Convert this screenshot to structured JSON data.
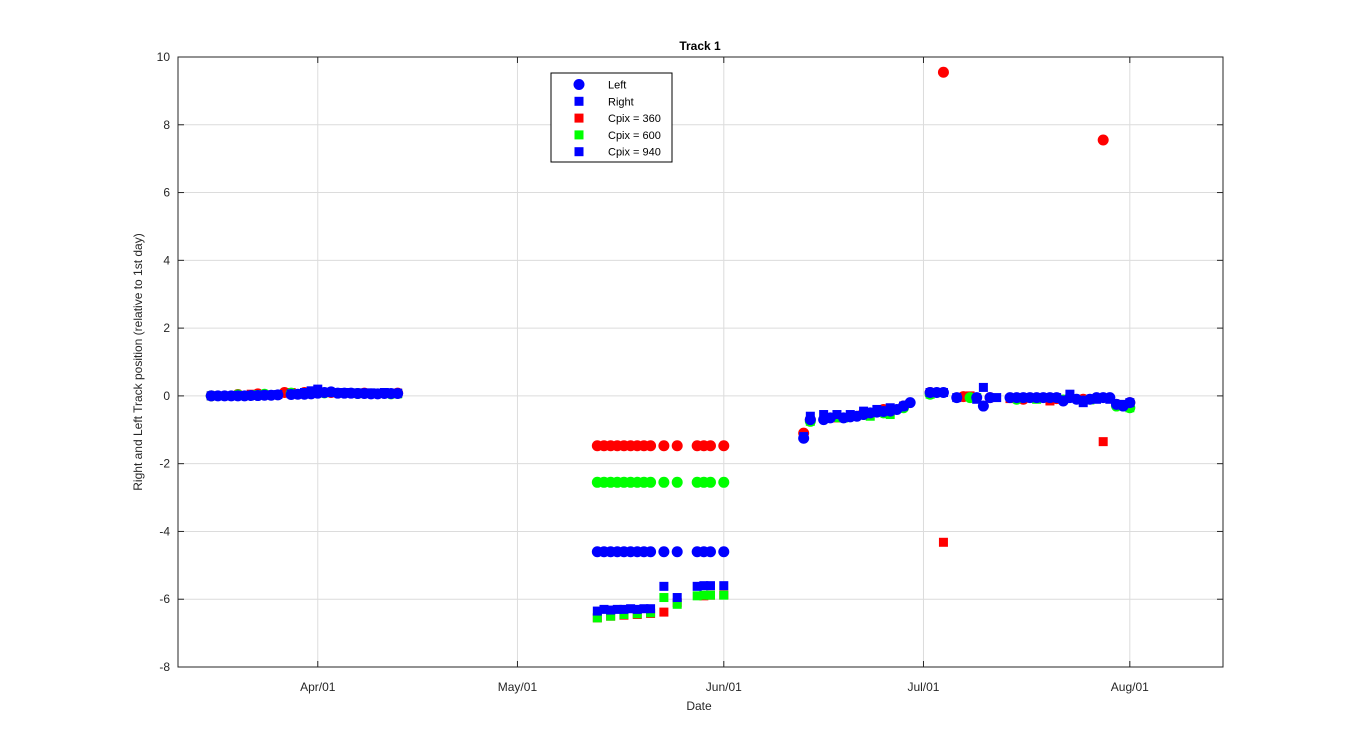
{
  "chart_data": {
    "type": "scatter",
    "title": "Track 1",
    "xlabel": "Date",
    "ylabel": "Right and Left Track position (relative to 1st day)",
    "ylim": [
      -8,
      10
    ],
    "xlim": [
      "2015-03-11",
      "2015-08-15"
    ],
    "yticks": [
      -8,
      -6,
      -4,
      -2,
      0,
      2,
      4,
      6,
      8,
      10
    ],
    "xticks": [
      {
        "date": "2015-04-01",
        "label": "Apr/01"
      },
      {
        "date": "2015-05-01",
        "label": "May/01"
      },
      {
        "date": "2015-06-01",
        "label": "Jun/01"
      },
      {
        "date": "2015-07-01",
        "label": "Jul/01"
      },
      {
        "date": "2015-08-01",
        "label": "Aug/01"
      }
    ],
    "grid": true,
    "legend_position": "top-center",
    "legend": [
      {
        "name": "Left",
        "marker": "circle",
        "color": "#0000ff"
      },
      {
        "name": "Right",
        "marker": "square",
        "color": "#0000ff"
      },
      {
        "name": "Cpix = 360",
        "marker": "square",
        "color": "#ff0000"
      },
      {
        "name": "Cpix = 600",
        "marker": "square",
        "color": "#00ff00"
      },
      {
        "name": "Cpix = 940",
        "marker": "square",
        "color": "#0000ff"
      }
    ],
    "series": [
      {
        "name": "Cpix = 360",
        "color": "#ff0000",
        "left": [
          [
            "2015-03-16",
            0.0
          ],
          [
            "2015-03-20",
            0.04
          ],
          [
            "2015-03-23",
            0.06
          ],
          [
            "2015-03-27",
            0.1
          ],
          [
            "2015-03-30",
            0.1
          ],
          [
            "2015-04-03",
            0.1
          ],
          [
            "2015-04-08",
            0.08
          ],
          [
            "2015-04-13",
            0.08
          ],
          [
            "2015-05-13",
            -1.47
          ],
          [
            "2015-05-14",
            -1.47
          ],
          [
            "2015-05-15",
            -1.47
          ],
          [
            "2015-05-16",
            -1.47
          ],
          [
            "2015-05-17",
            -1.47
          ],
          [
            "2015-05-18",
            -1.47
          ],
          [
            "2015-05-19",
            -1.47
          ],
          [
            "2015-05-20",
            -1.47
          ],
          [
            "2015-05-21",
            -1.47
          ],
          [
            "2015-05-23",
            -1.47
          ],
          [
            "2015-05-25",
            -1.47
          ],
          [
            "2015-05-28",
            -1.47
          ],
          [
            "2015-05-29",
            -1.47
          ],
          [
            "2015-05-30",
            -1.47
          ],
          [
            "2015-06-01",
            -1.47
          ],
          [
            "2015-06-13",
            -1.1
          ],
          [
            "2015-06-14",
            -0.7
          ],
          [
            "2015-06-18",
            -0.6
          ],
          [
            "2015-06-22",
            -0.5
          ],
          [
            "2015-06-25",
            -0.4
          ],
          [
            "2015-06-28",
            -0.3
          ],
          [
            "2015-07-02",
            0.1
          ],
          [
            "2015-07-04",
            9.55
          ],
          [
            "2015-07-07",
            -0.02
          ],
          [
            "2015-07-11",
            -0.05
          ],
          [
            "2015-07-16",
            -0.1
          ],
          [
            "2015-07-21",
            -0.08
          ],
          [
            "2015-07-25",
            -0.1
          ],
          [
            "2015-07-28",
            7.55
          ],
          [
            "2015-07-30",
            -0.25
          ],
          [
            "2015-08-01",
            -0.2
          ]
        ],
        "right": [
          [
            "2015-03-16",
            0.0
          ],
          [
            "2015-03-22",
            0.05
          ],
          [
            "2015-03-28",
            0.1
          ],
          [
            "2015-04-05",
            0.1
          ],
          [
            "2015-04-13",
            0.08
          ],
          [
            "2015-05-13",
            -6.55
          ],
          [
            "2015-05-15",
            -6.5
          ],
          [
            "2015-05-17",
            -6.47
          ],
          [
            "2015-05-19",
            -6.45
          ],
          [
            "2015-05-21",
            -6.42
          ],
          [
            "2015-05-23",
            -6.38
          ],
          [
            "2015-05-25",
            -6.1
          ],
          [
            "2015-05-29",
            -5.9
          ],
          [
            "2015-05-30",
            -5.88
          ],
          [
            "2015-06-01",
            -5.87
          ],
          [
            "2015-06-13",
            -1.2
          ],
          [
            "2015-06-18",
            -0.65
          ],
          [
            "2015-06-22",
            -0.55
          ],
          [
            "2015-06-26",
            -0.45
          ],
          [
            "2015-07-02",
            0.1
          ],
          [
            "2015-07-04",
            -4.32
          ],
          [
            "2015-07-08",
            0.0
          ],
          [
            "2015-07-14",
            -0.08
          ],
          [
            "2015-07-20",
            -0.15
          ],
          [
            "2015-07-28",
            -1.35
          ],
          [
            "2015-08-01",
            -0.25
          ]
        ]
      },
      {
        "name": "Cpix = 600",
        "color": "#00ff00",
        "left": [
          [
            "2015-03-16",
            0.0
          ],
          [
            "2015-03-20",
            0.03
          ],
          [
            "2015-03-24",
            0.05
          ],
          [
            "2015-03-28",
            0.08
          ],
          [
            "2015-04-02",
            0.09
          ],
          [
            "2015-04-07",
            0.07
          ],
          [
            "2015-04-12",
            0.06
          ],
          [
            "2015-05-13",
            -2.55
          ],
          [
            "2015-05-14",
            -2.55
          ],
          [
            "2015-05-15",
            -2.55
          ],
          [
            "2015-05-16",
            -2.55
          ],
          [
            "2015-05-17",
            -2.55
          ],
          [
            "2015-05-18",
            -2.55
          ],
          [
            "2015-05-19",
            -2.55
          ],
          [
            "2015-05-20",
            -2.55
          ],
          [
            "2015-05-21",
            -2.55
          ],
          [
            "2015-05-23",
            -2.55
          ],
          [
            "2015-05-25",
            -2.55
          ],
          [
            "2015-05-28",
            -2.55
          ],
          [
            "2015-05-29",
            -2.55
          ],
          [
            "2015-05-30",
            -2.55
          ],
          [
            "2015-06-01",
            -2.55
          ],
          [
            "2015-06-14",
            -0.75
          ],
          [
            "2015-06-18",
            -0.62
          ],
          [
            "2015-06-22",
            -0.55
          ],
          [
            "2015-06-25",
            -0.5
          ],
          [
            "2015-06-28",
            -0.35
          ],
          [
            "2015-07-02",
            0.05
          ],
          [
            "2015-07-08",
            -0.05
          ],
          [
            "2015-07-15",
            -0.1
          ],
          [
            "2015-07-22",
            -0.12
          ],
          [
            "2015-07-30",
            -0.3
          ],
          [
            "2015-08-01",
            -0.35
          ]
        ],
        "right": [
          [
            "2015-03-16",
            0.0
          ],
          [
            "2015-03-23",
            0.04
          ],
          [
            "2015-03-30",
            0.08
          ],
          [
            "2015-04-06",
            0.08
          ],
          [
            "2015-04-13",
            0.06
          ],
          [
            "2015-05-13",
            -6.55
          ],
          [
            "2015-05-15",
            -6.5
          ],
          [
            "2015-05-17",
            -6.45
          ],
          [
            "2015-05-19",
            -6.43
          ],
          [
            "2015-05-21",
            -6.4
          ],
          [
            "2015-05-23",
            -5.95
          ],
          [
            "2015-05-25",
            -6.15
          ],
          [
            "2015-05-28",
            -5.9
          ],
          [
            "2015-05-29",
            -5.88
          ],
          [
            "2015-05-30",
            -5.88
          ],
          [
            "2015-06-01",
            -5.88
          ],
          [
            "2015-06-14",
            -0.75
          ],
          [
            "2015-06-19",
            -0.65
          ],
          [
            "2015-06-23",
            -0.6
          ],
          [
            "2015-06-26",
            -0.55
          ],
          [
            "2015-07-02",
            0.05
          ],
          [
            "2015-07-09",
            -0.05
          ],
          [
            "2015-07-18",
            -0.1
          ],
          [
            "2015-07-26",
            -0.12
          ],
          [
            "2015-08-01",
            -0.35
          ]
        ]
      },
      {
        "name": "Cpix = 940",
        "color": "#0000ff",
        "left": [
          [
            "2015-03-16",
            0.0
          ],
          [
            "2015-03-17",
            0.0
          ],
          [
            "2015-03-18",
            0.0
          ],
          [
            "2015-03-19",
            0.0
          ],
          [
            "2015-03-20",
            0.0
          ],
          [
            "2015-03-21",
            0.0
          ],
          [
            "2015-03-22",
            0.01
          ],
          [
            "2015-03-23",
            0.01
          ],
          [
            "2015-03-24",
            0.02
          ],
          [
            "2015-03-25",
            0.02
          ],
          [
            "2015-03-26",
            0.03
          ],
          [
            "2015-03-28",
            0.04
          ],
          [
            "2015-03-29",
            0.05
          ],
          [
            "2015-03-30",
            0.05
          ],
          [
            "2015-03-31",
            0.06
          ],
          [
            "2015-04-01",
            0.08
          ],
          [
            "2015-04-02",
            0.1
          ],
          [
            "2015-04-03",
            0.12
          ],
          [
            "2015-04-04",
            0.08
          ],
          [
            "2015-04-05",
            0.08
          ],
          [
            "2015-04-06",
            0.08
          ],
          [
            "2015-04-07",
            0.07
          ],
          [
            "2015-04-08",
            0.07
          ],
          [
            "2015-04-09",
            0.06
          ],
          [
            "2015-04-10",
            0.06
          ],
          [
            "2015-04-11",
            0.07
          ],
          [
            "2015-04-12",
            0.07
          ],
          [
            "2015-04-13",
            0.07
          ],
          [
            "2015-05-13",
            -4.6
          ],
          [
            "2015-05-14",
            -4.6
          ],
          [
            "2015-05-15",
            -4.6
          ],
          [
            "2015-05-16",
            -4.6
          ],
          [
            "2015-05-17",
            -4.6
          ],
          [
            "2015-05-18",
            -4.6
          ],
          [
            "2015-05-19",
            -4.6
          ],
          [
            "2015-05-20",
            -4.6
          ],
          [
            "2015-05-21",
            -4.6
          ],
          [
            "2015-05-23",
            -4.6
          ],
          [
            "2015-05-25",
            -4.6
          ],
          [
            "2015-05-28",
            -4.6
          ],
          [
            "2015-05-29",
            -4.6
          ],
          [
            "2015-05-30",
            -4.6
          ],
          [
            "2015-06-01",
            -4.6
          ],
          [
            "2015-06-13",
            -1.25
          ],
          [
            "2015-06-14",
            -0.7
          ],
          [
            "2015-06-16",
            -0.7
          ],
          [
            "2015-06-17",
            -0.65
          ],
          [
            "2015-06-19",
            -0.65
          ],
          [
            "2015-06-20",
            -0.62
          ],
          [
            "2015-06-21",
            -0.6
          ],
          [
            "2015-06-22",
            -0.55
          ],
          [
            "2015-06-23",
            -0.5
          ],
          [
            "2015-06-24",
            -0.48
          ],
          [
            "2015-06-25",
            -0.46
          ],
          [
            "2015-06-26",
            -0.45
          ],
          [
            "2015-06-27",
            -0.4
          ],
          [
            "2015-06-28",
            -0.3
          ],
          [
            "2015-06-29",
            -0.2
          ],
          [
            "2015-07-02",
            0.1
          ],
          [
            "2015-07-03",
            0.1
          ],
          [
            "2015-07-04",
            0.1
          ],
          [
            "2015-07-06",
            -0.05
          ],
          [
            "2015-07-09",
            -0.05
          ],
          [
            "2015-07-10",
            -0.3
          ],
          [
            "2015-07-11",
            -0.05
          ],
          [
            "2015-07-14",
            -0.05
          ],
          [
            "2015-07-15",
            -0.05
          ],
          [
            "2015-07-16",
            -0.05
          ],
          [
            "2015-07-17",
            -0.05
          ],
          [
            "2015-07-18",
            -0.05
          ],
          [
            "2015-07-19",
            -0.05
          ],
          [
            "2015-07-20",
            -0.05
          ],
          [
            "2015-07-21",
            -0.05
          ],
          [
            "2015-07-22",
            -0.15
          ],
          [
            "2015-07-23",
            -0.05
          ],
          [
            "2015-07-24",
            -0.1
          ],
          [
            "2015-07-25",
            -0.15
          ],
          [
            "2015-07-26",
            -0.1
          ],
          [
            "2015-07-27",
            -0.05
          ],
          [
            "2015-07-28",
            -0.05
          ],
          [
            "2015-07-29",
            -0.05
          ],
          [
            "2015-07-30",
            -0.25
          ],
          [
            "2015-07-31",
            -0.3
          ],
          [
            "2015-08-01",
            -0.2
          ]
        ],
        "right": [
          [
            "2015-03-16",
            0.0
          ],
          [
            "2015-03-18",
            0.0
          ],
          [
            "2015-03-20",
            0.01
          ],
          [
            "2015-03-22",
            0.02
          ],
          [
            "2015-03-24",
            0.03
          ],
          [
            "2015-03-26",
            0.04
          ],
          [
            "2015-03-28",
            0.06
          ],
          [
            "2015-03-30",
            0.1
          ],
          [
            "2015-03-31",
            0.15
          ],
          [
            "2015-04-01",
            0.2
          ],
          [
            "2015-04-03",
            0.1
          ],
          [
            "2015-04-05",
            0.1
          ],
          [
            "2015-04-07",
            0.09
          ],
          [
            "2015-04-09",
            0.09
          ],
          [
            "2015-04-11",
            0.1
          ],
          [
            "2015-04-13",
            0.08
          ],
          [
            "2015-05-13",
            -6.35
          ],
          [
            "2015-05-14",
            -6.3
          ],
          [
            "2015-05-15",
            -6.32
          ],
          [
            "2015-05-16",
            -6.3
          ],
          [
            "2015-05-17",
            -6.3
          ],
          [
            "2015-05-18",
            -6.28
          ],
          [
            "2015-05-19",
            -6.3
          ],
          [
            "2015-05-20",
            -6.28
          ],
          [
            "2015-05-21",
            -6.28
          ],
          [
            "2015-05-23",
            -5.62
          ],
          [
            "2015-05-25",
            -5.95
          ],
          [
            "2015-05-28",
            -5.62
          ],
          [
            "2015-05-29",
            -5.6
          ],
          [
            "2015-05-30",
            -5.6
          ],
          [
            "2015-06-01",
            -5.6
          ],
          [
            "2015-06-13",
            -1.2
          ],
          [
            "2015-06-14",
            -0.6
          ],
          [
            "2015-06-16",
            -0.55
          ],
          [
            "2015-06-18",
            -0.55
          ],
          [
            "2015-06-20",
            -0.55
          ],
          [
            "2015-06-22",
            -0.45
          ],
          [
            "2015-06-24",
            -0.4
          ],
          [
            "2015-06-26",
            -0.35
          ],
          [
            "2015-06-28",
            -0.3
          ],
          [
            "2015-07-02",
            0.1
          ],
          [
            "2015-07-04",
            0.1
          ],
          [
            "2015-07-06",
            -0.05
          ],
          [
            "2015-07-09",
            -0.1
          ],
          [
            "2015-07-10",
            0.25
          ],
          [
            "2015-07-12",
            -0.05
          ],
          [
            "2015-07-16",
            -0.05
          ],
          [
            "2015-07-19",
            -0.05
          ],
          [
            "2015-07-21",
            -0.05
          ],
          [
            "2015-07-23",
            0.05
          ],
          [
            "2015-07-25",
            -0.2
          ],
          [
            "2015-07-27",
            -0.1
          ],
          [
            "2015-07-29",
            -0.1
          ],
          [
            "2015-07-31",
            -0.25
          ],
          [
            "2015-08-01",
            -0.2
          ]
        ]
      }
    ]
  }
}
